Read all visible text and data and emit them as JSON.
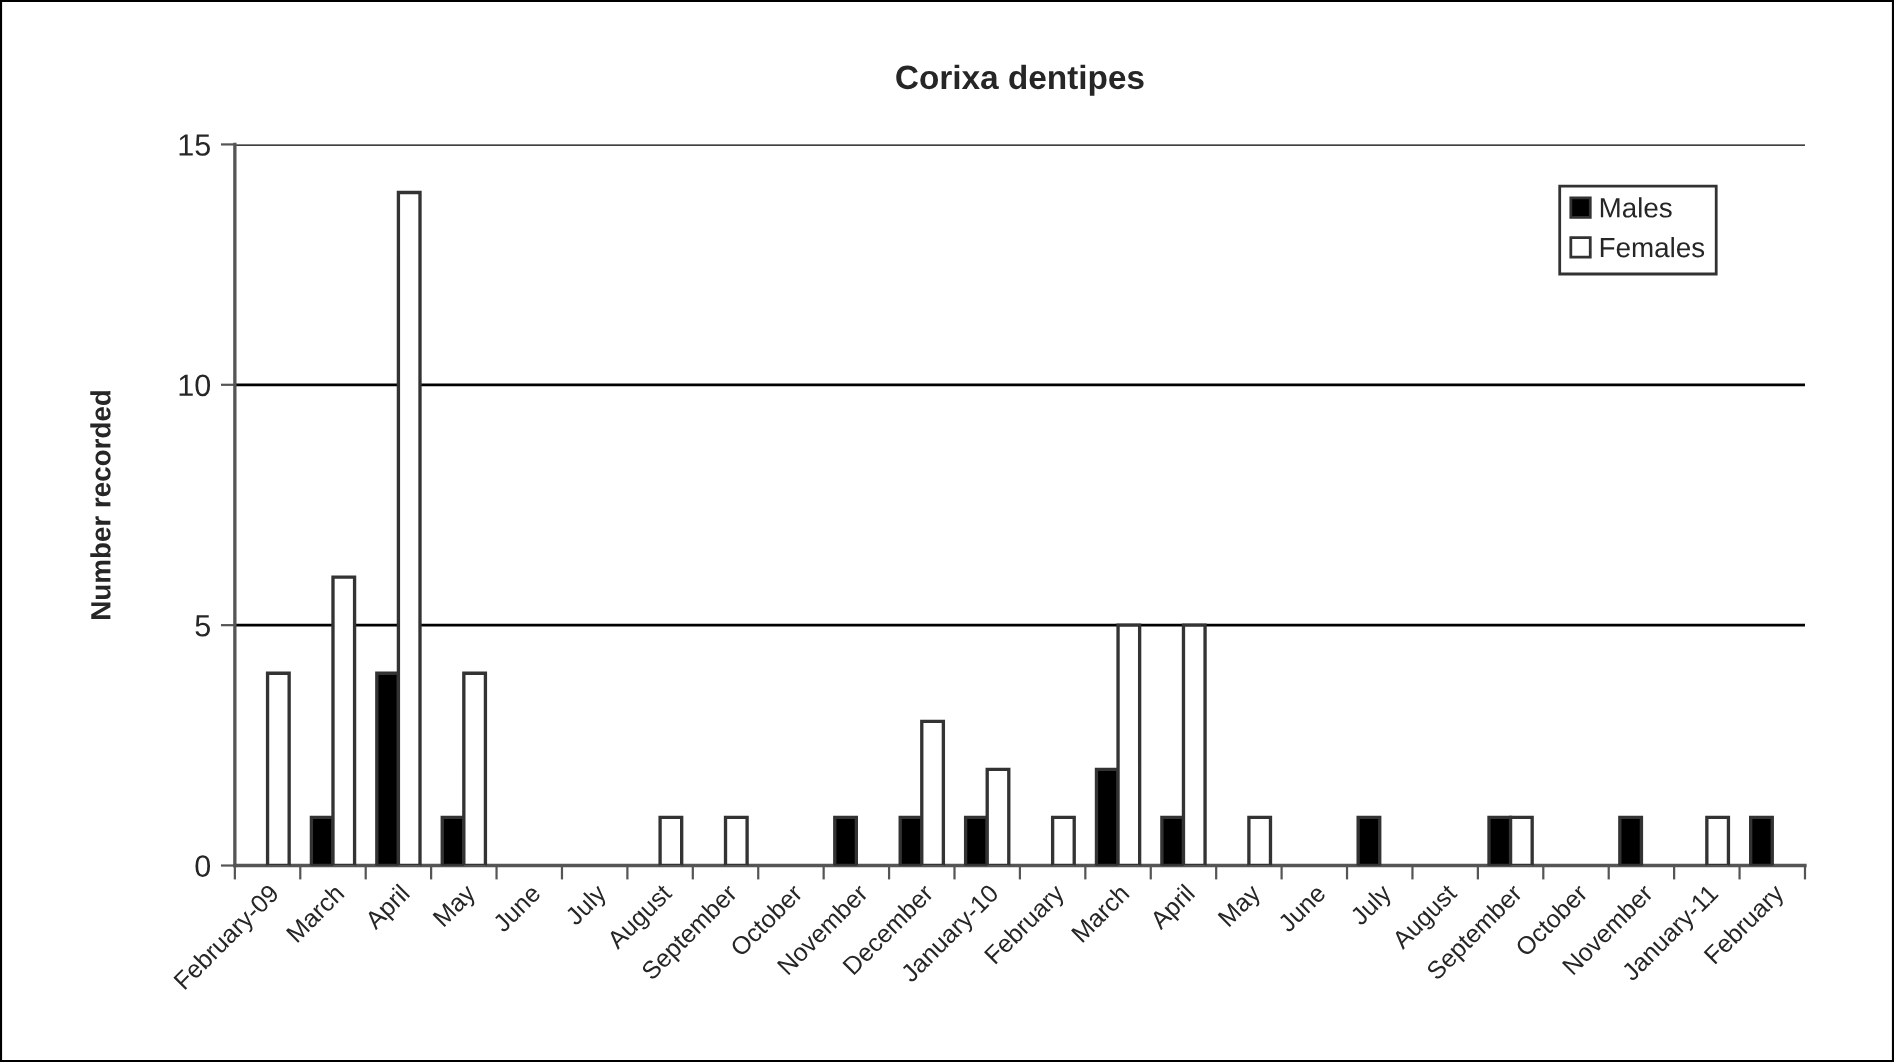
{
  "chart_data": {
    "type": "bar",
    "title": "Corixa dentipes",
    "ylabel": "Number recorded",
    "categories": [
      "February-09",
      "March",
      "April",
      "May",
      "June",
      "July",
      "August",
      "September",
      "October",
      "November",
      "December",
      "January-10",
      "February",
      "March",
      "April",
      "May",
      "June",
      "July",
      "August",
      "September",
      "October",
      "November",
      "January-11",
      "February"
    ],
    "series": [
      {
        "name": "Males",
        "color": "#000000",
        "values": [
          0,
          1,
          4,
          1,
          0,
          0,
          0,
          0,
          0,
          1,
          1,
          1,
          0,
          2,
          1,
          0,
          0,
          1,
          0,
          1,
          0,
          1,
          0,
          1
        ]
      },
      {
        "name": "Females",
        "color": "#ffffff",
        "values": [
          4,
          6,
          14,
          4,
          0,
          0,
          1,
          1,
          0,
          0,
          3,
          2,
          1,
          5,
          5,
          1,
          0,
          0,
          0,
          1,
          0,
          0,
          1,
          0
        ]
      }
    ],
    "ylim": [
      0,
      15
    ],
    "yticks": [
      0,
      5,
      10,
      15
    ],
    "grid": "y",
    "legend": "top right"
  }
}
